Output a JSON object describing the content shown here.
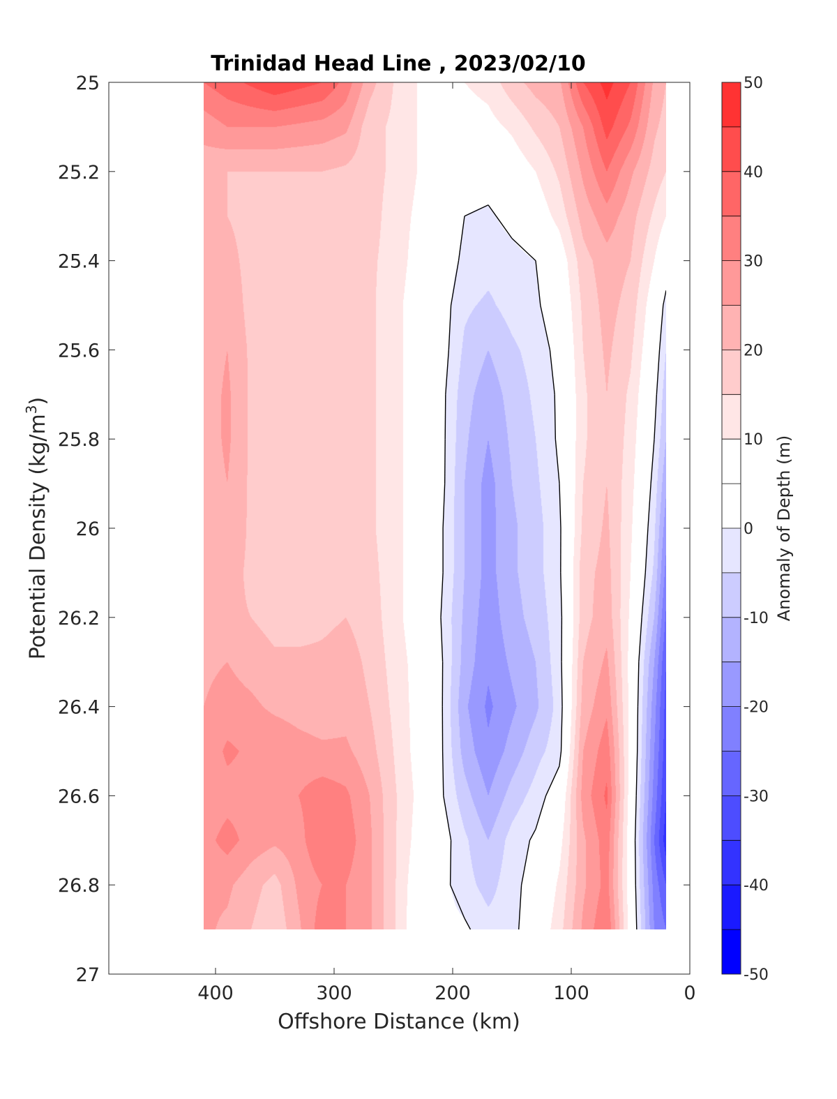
{
  "chart_data": {
    "type": "heatmap",
    "title": "Trinidad Head Line , 2023/02/10",
    "xlabel": "Offshore Distance (km)",
    "ylabel_main": "Potential Density (kg/m",
    "ylabel_sup": "3",
    "ylabel_tail": ")",
    "colorbar_label": "Anomaly of Depth (m)",
    "x_reversed": true,
    "xlim": [
      490,
      0
    ],
    "ylim": [
      25.0,
      27.0
    ],
    "y_reversed": true,
    "xticks": [
      400,
      300,
      200,
      100,
      0
    ],
    "xtick_labels": [
      "400",
      "300",
      "200",
      "100",
      "0"
    ],
    "yticks": [
      25,
      25.2,
      25.4,
      25.6,
      25.8,
      26,
      26.2,
      26.4,
      26.6,
      26.8,
      27
    ],
    "ytick_labels": [
      "25",
      "25.2",
      "25.4",
      "25.6",
      "25.8",
      "26",
      "26.2",
      "26.4",
      "26.6",
      "26.8",
      "27"
    ],
    "colorbar": {
      "min": -50,
      "max": 50,
      "step": 5,
      "tick_values": [
        50,
        40,
        30,
        20,
        10,
        0,
        -10,
        -20,
        -30,
        -40,
        -50
      ],
      "tick_labels": [
        "50",
        "40",
        "30",
        "20",
        "10",
        "0",
        "-10",
        "-20",
        "-30",
        "-40",
        "-50"
      ],
      "colors": [
        "#0000ff",
        "#1a1aff",
        "#3333ff",
        "#4d4dff",
        "#6666ff",
        "#8080ff",
        "#9999ff",
        "#b3b3ff",
        "#ccccff",
        "#e6e6ff",
        "#ffffff",
        "#ffffff",
        "#ffe6e6",
        "#ffcccc",
        "#ffb3b3",
        "#ff9999",
        "#ff8080",
        "#ff6666",
        "#ff4d4d",
        "#ff3333",
        "#ff1a1a",
        "#ff0000"
      ]
    },
    "data_extent": {
      "x": [
        410,
        20
      ],
      "y": [
        25.0,
        26.9
      ]
    },
    "x": [
      410,
      390,
      370,
      350,
      330,
      310,
      290,
      270,
      250,
      230,
      210,
      190,
      170,
      150,
      130,
      110,
      90,
      70,
      50,
      30,
      20
    ],
    "y": [
      25.0,
      25.1,
      25.2,
      25.3,
      25.4,
      25.5,
      25.6,
      25.7,
      25.8,
      25.9,
      26.0,
      26.1,
      26.2,
      26.3,
      26.4,
      26.5,
      26.6,
      26.7,
      26.8,
      26.9
    ],
    "z": [
      [
        35,
        38,
        41,
        44,
        42,
        40,
        33,
        22,
        15,
        10,
        8,
        10,
        12,
        18,
        22,
        24,
        40,
        47,
        40,
        24,
        20
      ],
      [
        27,
        30,
        30,
        30,
        29,
        28,
        26,
        17,
        14,
        10,
        7,
        7,
        8,
        11,
        16,
        20,
        30,
        42,
        34,
        21,
        18
      ],
      [
        22,
        20,
        20,
        20,
        20,
        20,
        19,
        17,
        14,
        10,
        5,
        3,
        3,
        6,
        10,
        16,
        26,
        35,
        26,
        18,
        15
      ],
      [
        22,
        20,
        18,
        16,
        16,
        18,
        19,
        17,
        13,
        9,
        4,
        0,
        -1,
        2,
        6,
        12,
        22,
        28,
        22,
        14,
        10
      ],
      [
        22,
        22,
        18,
        16,
        16,
        17,
        18,
        16,
        13,
        8,
        3,
        -1,
        -3,
        -2,
        0,
        6,
        18,
        23,
        20,
        10,
        4
      ],
      [
        22,
        24,
        18,
        16,
        16,
        16,
        18,
        16,
        12,
        7,
        3,
        -4,
        -6,
        -3,
        -1,
        4,
        16,
        22,
        18,
        6,
        -2
      ],
      [
        22,
        25,
        19,
        16,
        16,
        16,
        18,
        16,
        12,
        7,
        3,
        -6,
        -10,
        -6,
        -3,
        2,
        15,
        21,
        16,
        4,
        -5
      ],
      [
        22,
        26,
        19,
        16,
        16,
        16,
        18,
        16,
        12,
        7,
        2,
        -8,
        -13,
        -8,
        -4,
        1,
        14,
        20,
        14,
        2,
        -8
      ],
      [
        22,
        26,
        19,
        16,
        16,
        17,
        18,
        16,
        12,
        7,
        2,
        -9,
        -15,
        -9,
        -5,
        1,
        14,
        20,
        13,
        0,
        -10
      ],
      [
        22,
        25,
        19,
        16,
        17,
        18,
        18,
        16,
        12,
        7,
        2,
        -10,
        -17,
        -10,
        -6,
        0,
        15,
        20,
        12,
        -2,
        -14
      ],
      [
        22,
        24,
        19,
        16,
        17,
        17,
        18,
        16,
        12,
        7,
        1,
        -10,
        -17,
        -11,
        -7,
        -1,
        16,
        21,
        11,
        -4,
        -18
      ],
      [
        22,
        22,
        19,
        16,
        17,
        18,
        19,
        17,
        12,
        7,
        1,
        -10,
        -17,
        -11,
        -7,
        -1,
        18,
        22,
        10,
        -6,
        -22
      ],
      [
        22,
        21,
        20,
        18,
        18,
        19,
        20,
        18,
        12,
        7,
        0,
        -11,
        -18,
        -12,
        -8,
        -2,
        18,
        23,
        9,
        -10,
        -26
      ],
      [
        24,
        25,
        23,
        21,
        21,
        21,
        22,
        19,
        13,
        8,
        1,
        -12,
        -19,
        -14,
        -10,
        -2,
        20,
        26,
        8,
        -15,
        -30
      ],
      [
        25,
        27,
        26,
        24,
        23,
        22,
        23,
        20,
        14,
        8,
        1,
        -14,
        -21,
        -16,
        -11,
        -3,
        22,
        29,
        8,
        -18,
        -32
      ],
      [
        26,
        31,
        29,
        29,
        27,
        26,
        26,
        22,
        15,
        8,
        1,
        -12,
        -19,
        -13,
        -7,
        -2,
        25,
        33,
        8,
        -20,
        -33
      ],
      [
        26,
        28,
        28,
        28,
        30,
        33,
        31,
        25,
        16,
        9,
        1,
        -8,
        -15,
        -8,
        -3,
        4,
        27,
        36,
        7,
        -22,
        -35
      ],
      [
        28,
        32,
        28,
        26,
        28,
        35,
        33,
        26,
        16,
        8,
        3,
        -4,
        -10,
        -3,
        1,
        8,
        24,
        33,
        6,
        -25,
        -38
      ],
      [
        26,
        26,
        22,
        18,
        26,
        30,
        30,
        26,
        16,
        6,
        2,
        -3,
        -7,
        -2,
        3,
        11,
        24,
        32,
        6,
        -22,
        -30
      ],
      [
        26,
        24,
        20,
        16,
        24,
        33,
        30,
        26,
        16,
        5,
        2,
        1,
        -3,
        -2,
        5,
        13,
        26,
        35,
        7,
        -20,
        -25
      ]
    ]
  }
}
